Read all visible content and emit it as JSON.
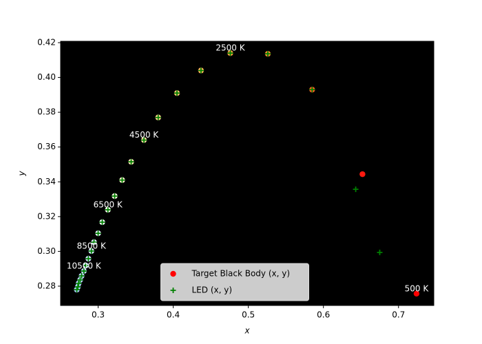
{
  "chart_data": {
    "type": "scatter",
    "xlabel": "x",
    "ylabel": "y",
    "xlim": [
      0.25,
      0.747
    ],
    "ylim": [
      0.2689,
      0.4208
    ],
    "xticks": [
      0.3,
      0.4,
      0.5,
      0.6,
      0.7
    ],
    "yticks": [
      0.28,
      {
        "value": 0.3,
        "label": "0.30"
      },
      0.32,
      0.34,
      0.36,
      0.38,
      {
        "value": 0.4,
        "label": "0.40"
      },
      0.42
    ],
    "background": "#000000",
    "legend": "lower center",
    "series": [
      {
        "name": "Target Black Body (x, y)",
        "color": "#ff0000",
        "marker": "circle",
        "x": [
          0.724,
          0.652,
          0.585,
          0.526,
          0.476,
          0.437,
          0.405,
          0.38,
          0.361,
          0.344,
          0.332,
          0.322,
          0.313,
          0.3055,
          0.3,
          0.2945,
          0.291,
          0.287,
          0.2835,
          0.281,
          0.278,
          0.276,
          0.274,
          0.273,
          0.2716
        ],
        "values": [
          0.2757,
          0.3444,
          0.393,
          0.4136,
          0.414,
          0.404,
          0.391,
          0.377,
          0.364,
          0.3515,
          0.341,
          0.3318,
          0.3239,
          0.3168,
          0.3104,
          0.3053,
          0.3002,
          0.2958,
          0.2919,
          0.2887,
          0.2859,
          0.2836,
          0.2816,
          0.2796,
          0.278
        ],
        "point_colors": [
          "#ff0000",
          "#ff1a10",
          "#ff5a20",
          "#ff8a30",
          "#ffa040",
          "#ffb45a",
          "#ffc474",
          "#ffd28e",
          "#ffdea6",
          "#ffe8bc",
          "#fff0d2",
          "#fff6e4",
          "#fffaf4",
          "#f6f8ff",
          "#eaf0ff",
          "#e0eaff",
          "#d8e4ff",
          "#d0dfff",
          "#cadbff",
          "#c4d7ff",
          "#bfd4ff",
          "#bad1ff",
          "#b6ceff",
          "#b2ccff",
          "#aecaff"
        ]
      },
      {
        "name": "LED (x, y)",
        "color": "#008000",
        "marker": "plus",
        "x": [
          0.675,
          0.643,
          0.585,
          0.526,
          0.476,
          0.437,
          0.405,
          0.38,
          0.361,
          0.344,
          0.332,
          0.322,
          0.313,
          0.3055,
          0.3,
          0.2945,
          0.291,
          0.287,
          0.2835,
          0.281,
          0.278,
          0.276,
          0.274,
          0.273,
          0.2716
        ],
        "values": [
          0.2994,
          0.3357,
          0.393,
          0.4136,
          0.414,
          0.404,
          0.391,
          0.377,
          0.364,
          0.3515,
          0.341,
          0.3318,
          0.3239,
          0.3168,
          0.3104,
          0.3053,
          0.3002,
          0.2958,
          0.2919,
          0.2887,
          0.2859,
          0.2836,
          0.2816,
          0.2796,
          0.278
        ]
      }
    ],
    "annotations": [
      {
        "text": "500 K",
        "x": 0.724,
        "y": 0.2757
      },
      {
        "text": "2500 K",
        "x": 0.476,
        "y": 0.414
      },
      {
        "text": "4500 K",
        "x": 0.361,
        "y": 0.364
      },
      {
        "text": "6500 K",
        "x": 0.313,
        "y": 0.3239
      },
      {
        "text": "8500 K",
        "x": 0.291,
        "y": 0.3002
      },
      {
        "text": "10500 K",
        "x": 0.281,
        "y": 0.2887
      }
    ]
  }
}
